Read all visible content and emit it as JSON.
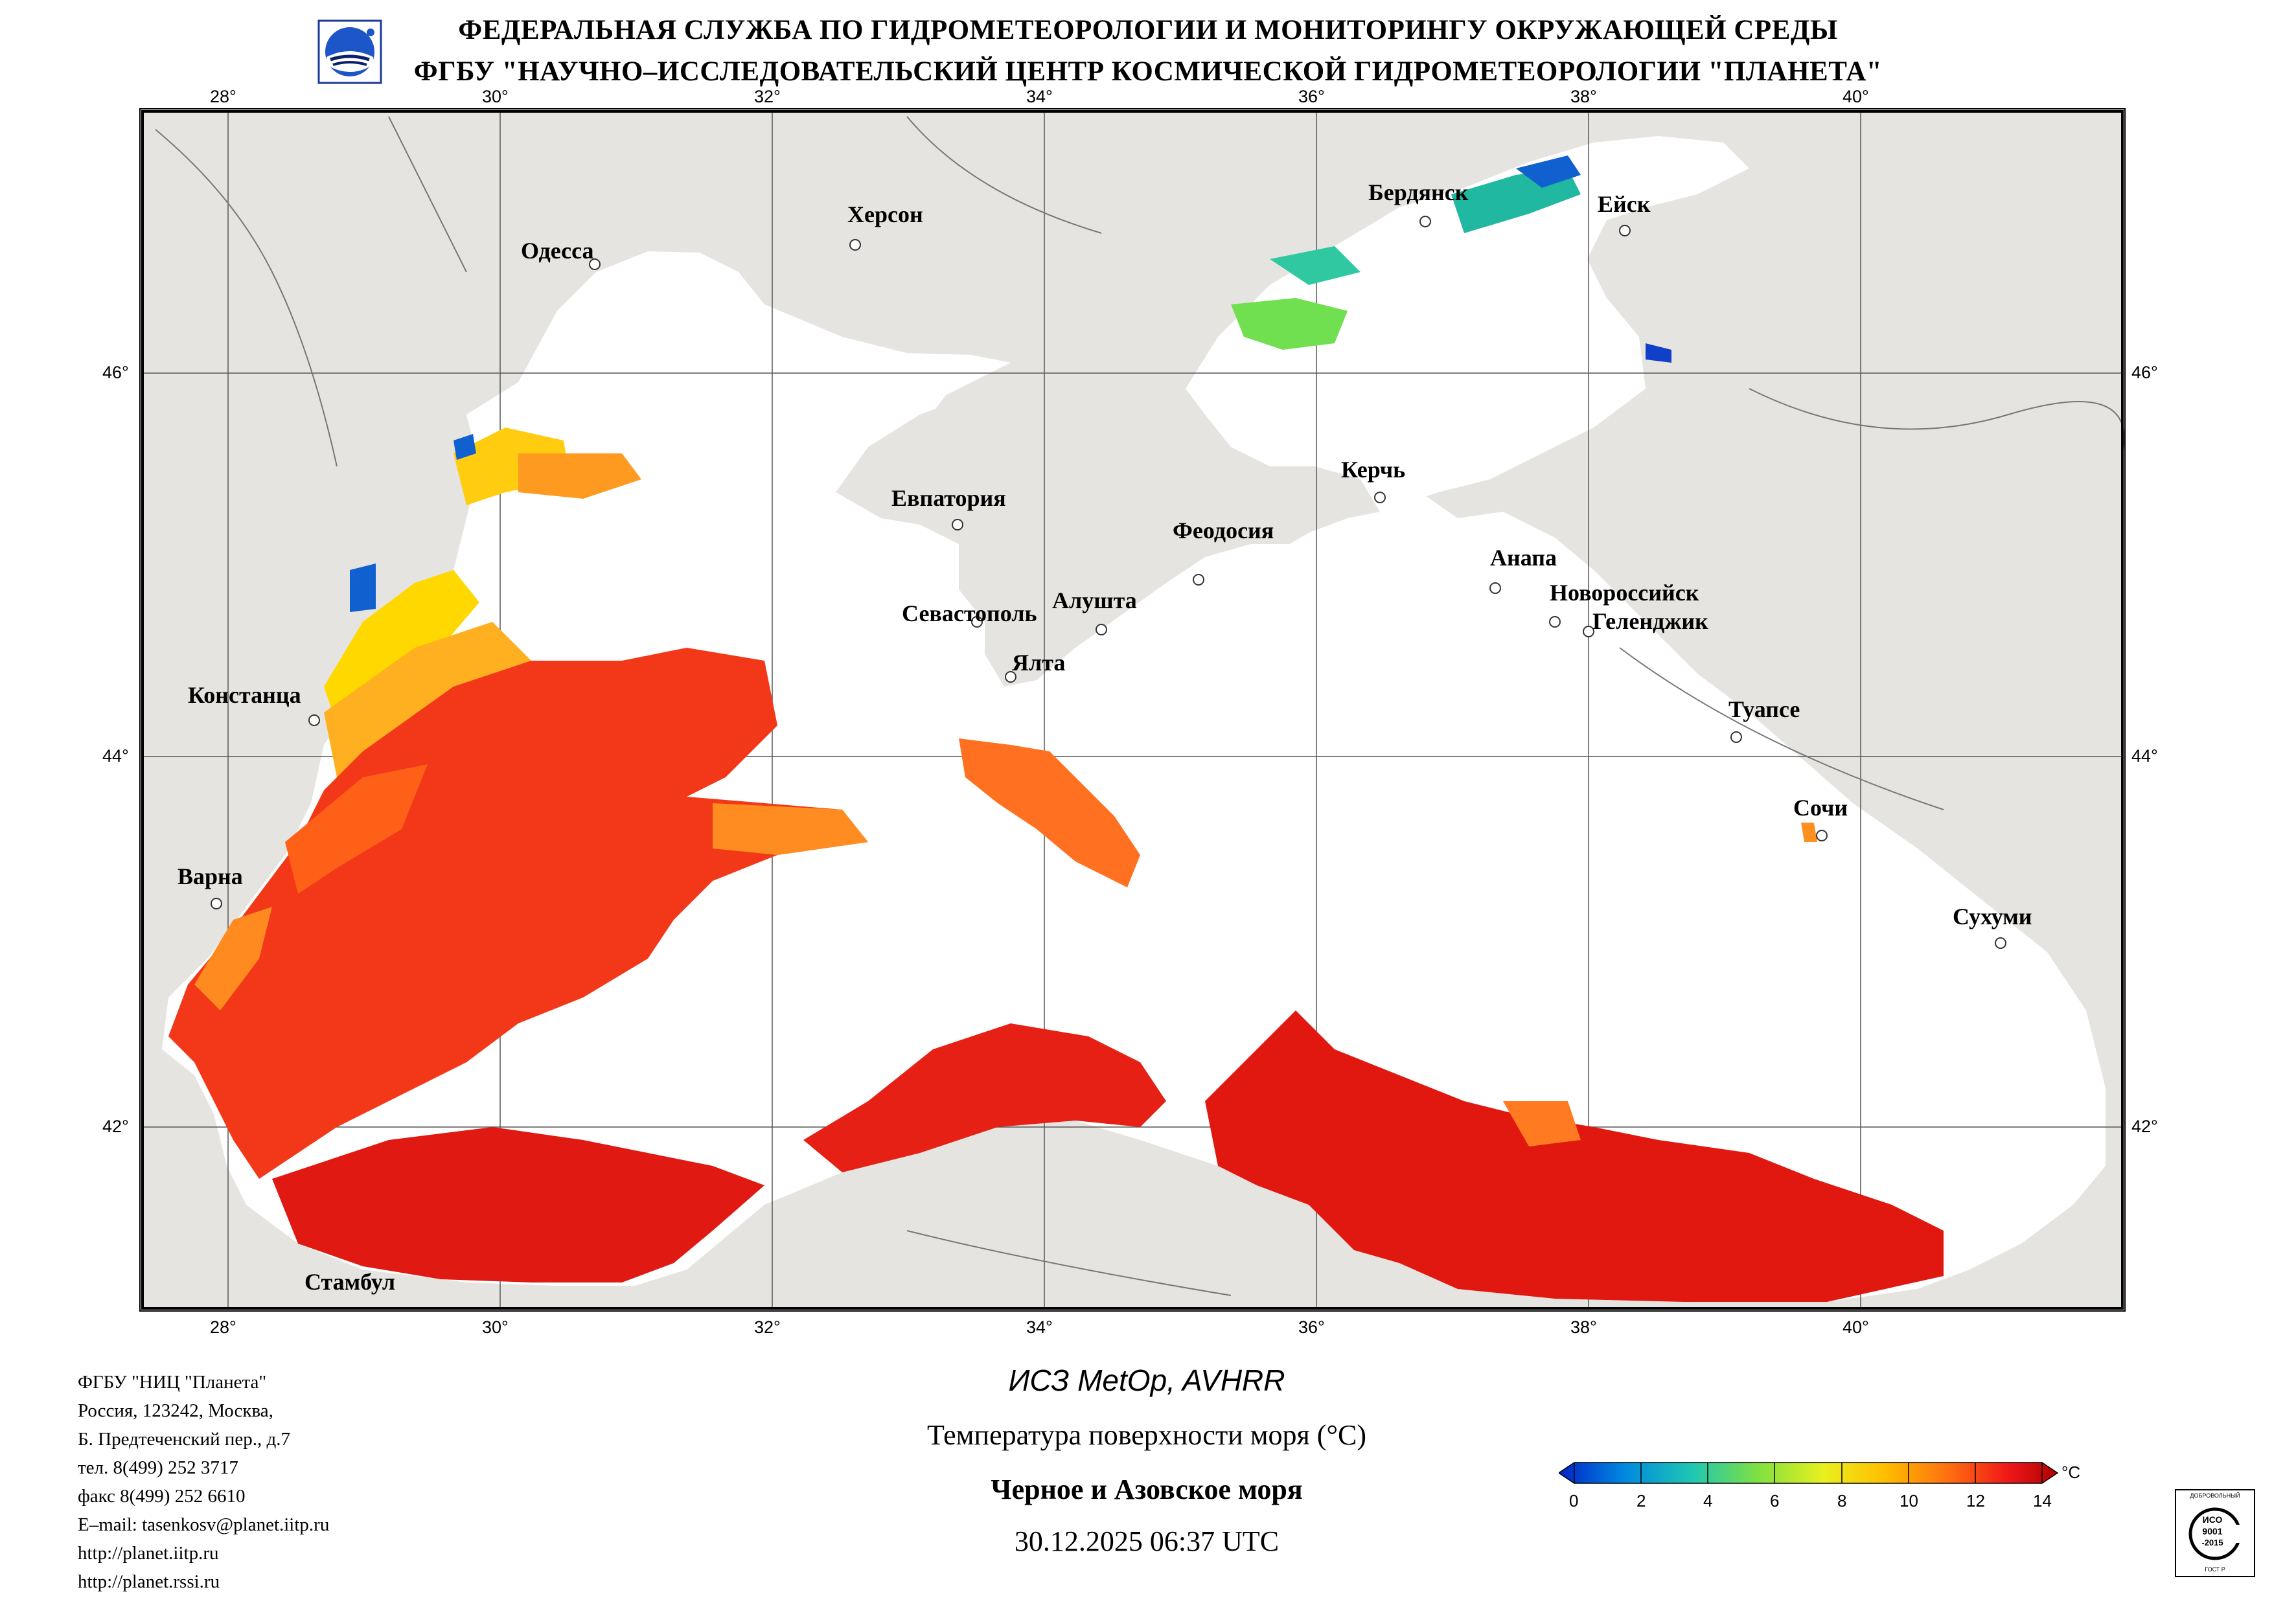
{
  "header": {
    "line1": "ФЕДЕРАЛЬНАЯ СЛУЖБА ПО ГИДРОМЕТЕОРОЛОГИИ И МОНИТОРИНГУ ОКРУЖАЮЩЕЙ СРЕДЫ",
    "line2": "ФГБУ \"НАУЧНО–ИССЛЕДОВАТЕЛЬСКИЙ ЦЕНТР КОСМИЧЕСКОЙ ГИДРОМЕТЕОРОЛОГИИ \"ПЛАНЕТА\""
  },
  "map": {
    "lon_labels": [
      "28°",
      "30°",
      "32°",
      "34°",
      "36°",
      "38°",
      "40°"
    ],
    "lat_labels": [
      "46°",
      "44°",
      "42°"
    ],
    "cities": [
      {
        "name": "Одесса"
      },
      {
        "name": "Херсон"
      },
      {
        "name": "Бердянск"
      },
      {
        "name": "Ейск"
      },
      {
        "name": "Евпатория"
      },
      {
        "name": "Феодосия"
      },
      {
        "name": "Керчь"
      },
      {
        "name": "Анапа"
      },
      {
        "name": "Новороссийск"
      },
      {
        "name": "Геленджик"
      },
      {
        "name": "Севастополь"
      },
      {
        "name": "Алушта"
      },
      {
        "name": "Ялта"
      },
      {
        "name": "Констанца"
      },
      {
        "name": "Туапсе"
      },
      {
        "name": "Сочи"
      },
      {
        "name": "Варна"
      },
      {
        "name": "Сухуми"
      },
      {
        "name": "Стамбул"
      }
    ],
    "colors": {
      "land": "#e6e4e0",
      "sea": "#ffffff",
      "grid": "#555555",
      "frame": "#000000"
    }
  },
  "address": {
    "lines": [
      "ФГБУ \"НИЦ \"Планета\"",
      "Россия, 123242, Москва,",
      "Б. Предтеченский пер., д.7",
      "тел. 8(499) 252 3717",
      "факс 8(499) 252 6610",
      "E–mail: tasenkosv@planet.iitp.ru",
      "http://planet.iitp.ru",
      "http://planet.rssi.ru"
    ]
  },
  "caption": {
    "satellite": "ИСЗ MetOp, AVHRR",
    "parameter": "Температура поверхности моря (°C)",
    "region": "Черное и Азовское моря",
    "datetime": "30.12.2025 06:37 UTC"
  },
  "colorbar": {
    "unit": "°C",
    "ticks": [
      "0",
      "2",
      "4",
      "6",
      "8",
      "10",
      "12",
      "14"
    ],
    "min": 0,
    "max": 14,
    "stops": [
      "#0022c8",
      "#0088e0",
      "#20c8b0",
      "#80e040",
      "#e8f020",
      "#ffc000",
      "#ff7010",
      "#f01818",
      "#b00000"
    ]
  },
  "cert": {
    "top": "ДОБРОВОЛЬНЫЙ",
    "iso": "ИСО",
    "num": "9001",
    "year": "-2015",
    "bottom": "ГОСТ Р"
  }
}
